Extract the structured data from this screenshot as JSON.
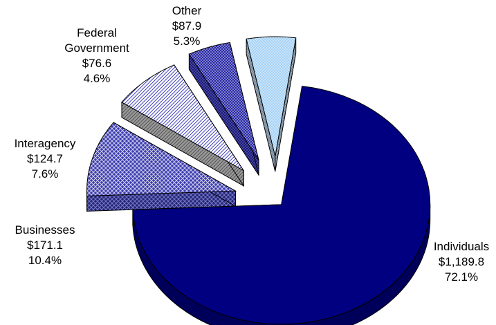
{
  "chart_data": {
    "type": "pie",
    "title": "",
    "slices": [
      {
        "label": "Individuals",
        "amount": "$1,189.8",
        "percent": "72.1%",
        "value": 1189.8,
        "share": 72.1,
        "color": "#000080"
      },
      {
        "label": "Businesses",
        "amount": "$171.1",
        "percent": "10.4%",
        "value": 171.1,
        "share": 10.4,
        "color": "#3a3aa8"
      },
      {
        "label": "Interagency",
        "amount": "$124.7",
        "percent": "7.6%",
        "value": 124.7,
        "share": 7.6,
        "color": "#c9cdf0"
      },
      {
        "label": "Federal Government",
        "amount": "$76.6",
        "percent": "4.6%",
        "value": 76.6,
        "share": 4.6,
        "color": "#2e2eaa"
      },
      {
        "label": "Other",
        "amount": "$87.9",
        "percent": "5.3%",
        "value": 87.9,
        "share": 5.3,
        "color": "#a8d4f5"
      }
    ],
    "exploded": true,
    "style": "3d"
  }
}
